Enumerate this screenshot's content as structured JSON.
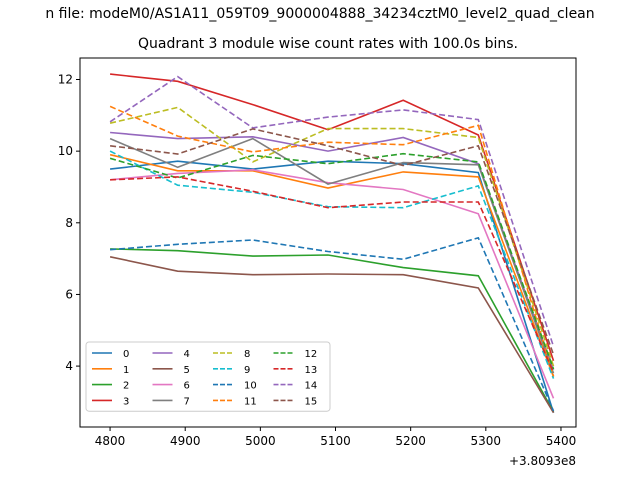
{
  "chart_data": {
    "type": "line",
    "suptitle": "n file: modeM0/AS1A11_059T09_9000004888_34234cztM0_level2_quad_clean",
    "title": "Quadrant 3 module wise count rates with 100.0s bins.",
    "xlabel": "",
    "ylabel": "",
    "x_offset_label": "+3.8093e8",
    "x": [
      4800,
      4890,
      4990,
      5090,
      5190,
      5290,
      5390
    ],
    "xlim": [
      4760,
      5420
    ],
    "ylim": [
      2.3,
      12.6
    ],
    "x_ticks": [
      4800,
      4900,
      5000,
      5100,
      5200,
      5300,
      5400
    ],
    "y_ticks": [
      4,
      6,
      8,
      10,
      12
    ],
    "grid": false,
    "legend": {
      "placement": "lower-left",
      "columns": 4
    },
    "series": [
      {
        "name": "0",
        "color": "#1f77b4",
        "dash": "solid",
        "values": [
          9.5,
          9.72,
          9.5,
          9.72,
          9.65,
          9.4,
          2.7
        ]
      },
      {
        "name": "1",
        "color": "#ff7f0e",
        "dash": "solid",
        "values": [
          9.9,
          9.45,
          9.45,
          8.97,
          9.42,
          9.28,
          3.7
        ]
      },
      {
        "name": "2",
        "color": "#2ca02c",
        "dash": "solid",
        "values": [
          7.27,
          7.22,
          7.07,
          7.1,
          6.75,
          6.52,
          2.72
        ]
      },
      {
        "name": "3",
        "color": "#d62728",
        "dash": "solid",
        "values": [
          12.15,
          11.95,
          11.3,
          10.6,
          11.42,
          10.45,
          4.15
        ]
      },
      {
        "name": "4",
        "color": "#9467bd",
        "dash": "solid",
        "values": [
          10.52,
          10.35,
          10.4,
          10.0,
          10.38,
          9.65,
          3.9
        ]
      },
      {
        "name": "5",
        "color": "#8c564b",
        "dash": "solid",
        "values": [
          7.05,
          6.65,
          6.55,
          6.57,
          6.55,
          6.18,
          2.7
        ]
      },
      {
        "name": "6",
        "color": "#e377c2",
        "dash": "solid",
        "values": [
          9.2,
          9.38,
          9.48,
          9.12,
          8.93,
          8.25,
          3.1
        ]
      },
      {
        "name": "7",
        "color": "#7f7f7f",
        "dash": "solid",
        "values": [
          10.35,
          9.55,
          10.35,
          9.08,
          9.68,
          9.62,
          3.8
        ]
      },
      {
        "name": "8",
        "color": "#bcbd22",
        "dash": "dashed",
        "values": [
          10.78,
          11.22,
          9.7,
          10.63,
          10.63,
          10.38,
          4.0
        ]
      },
      {
        "name": "9",
        "color": "#17becf",
        "dash": "dashed",
        "values": [
          10.0,
          9.05,
          8.85,
          8.45,
          8.42,
          9.03,
          3.65
        ]
      },
      {
        "name": "10",
        "color": "#1f77b4",
        "dash": "dashed",
        "values": [
          7.25,
          7.4,
          7.52,
          7.2,
          6.98,
          7.58,
          2.75
        ]
      },
      {
        "name": "11",
        "color": "#ff7f0e",
        "dash": "dashed",
        "values": [
          11.25,
          10.42,
          9.98,
          10.25,
          10.18,
          10.72,
          3.72
        ]
      },
      {
        "name": "12",
        "color": "#2ca02c",
        "dash": "dashed",
        "values": [
          9.8,
          9.25,
          9.88,
          9.65,
          9.93,
          9.7,
          3.92
        ]
      },
      {
        "name": "13",
        "color": "#d62728",
        "dash": "dashed",
        "values": [
          9.2,
          9.28,
          8.88,
          8.42,
          8.58,
          8.58,
          3.82
        ]
      },
      {
        "name": "14",
        "color": "#9467bd",
        "dash": "dashed",
        "values": [
          10.82,
          12.08,
          10.65,
          10.95,
          11.15,
          10.88,
          4.55
        ]
      },
      {
        "name": "15",
        "color": "#8c564b",
        "dash": "dashed",
        "values": [
          10.15,
          9.92,
          10.62,
          10.15,
          9.6,
          10.15,
          4.32
        ]
      }
    ]
  }
}
